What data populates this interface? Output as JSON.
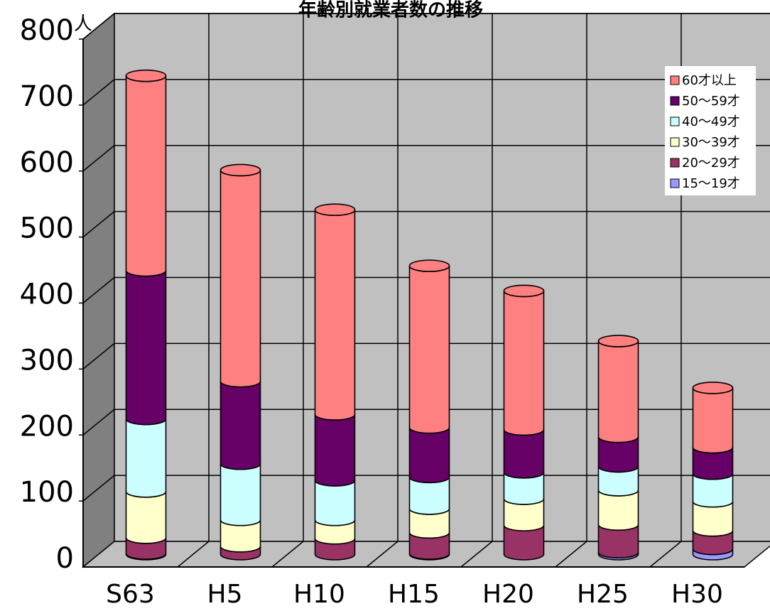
{
  "chart_data": {
    "type": "bar",
    "stacked": true,
    "style": "3d-cylinder",
    "title": "年齢別就業者数の推移",
    "ylabel": "人",
    "xlabel": "",
    "categories": [
      "S63",
      "H5",
      "H10",
      "H15",
      "H20",
      "H25",
      "H30"
    ],
    "ylim": [
      0,
      800
    ],
    "yticks": [
      0,
      100,
      200,
      300,
      400,
      500,
      600,
      700,
      800
    ],
    "grid": true,
    "legend_position": "top-right",
    "series": [
      {
        "name": "15〜19才",
        "color": "#9999ff",
        "values": [
          1,
          0,
          0,
          1,
          0,
          3,
          8
        ]
      },
      {
        "name": "20〜29才",
        "color": "#993366",
        "values": [
          24,
          12,
          24,
          32,
          44,
          42,
          28
        ]
      },
      {
        "name": "30〜39才",
        "color": "#ffffcc",
        "values": [
          70,
          40,
          28,
          36,
          40,
          52,
          44
        ]
      },
      {
        "name": "40〜49才",
        "color": "#ccffff",
        "values": [
          110,
          85,
          60,
          48,
          40,
          36,
          42
        ]
      },
      {
        "name": "50〜59才",
        "color": "#660066",
        "values": [
          225,
          125,
          100,
          75,
          65,
          45,
          40
        ]
      },
      {
        "name": "60才以上",
        "color": "#ff8080",
        "values": [
          295,
          320,
          310,
          245,
          210,
          145,
          90
        ]
      }
    ]
  }
}
